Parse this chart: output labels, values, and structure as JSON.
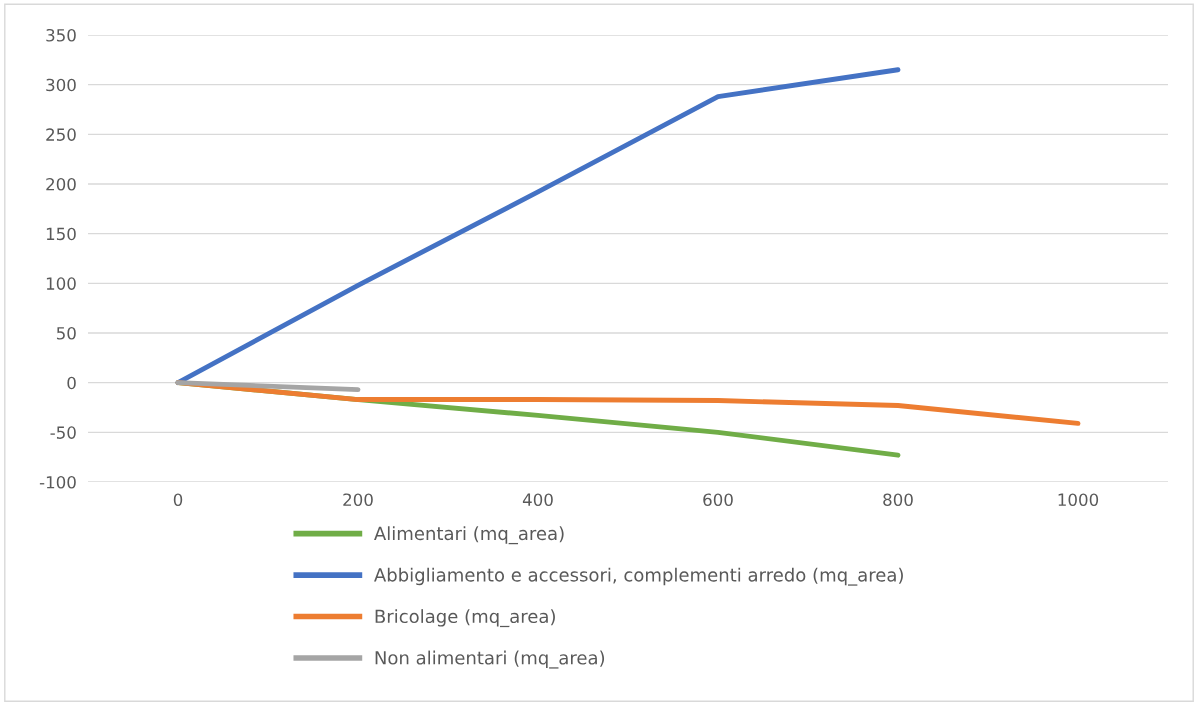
{
  "chart_data": {
    "type": "line",
    "categories": [
      "0",
      "200",
      "400",
      "600",
      "800",
      "1000"
    ],
    "series": [
      {
        "name": "Alimentari (mq_area)",
        "color": "#70ad47",
        "values": [
          0,
          -17,
          -33,
          -50,
          -73,
          null
        ]
      },
      {
        "name": "Abbigliamento e accessori, complementi arredo (mq_area)",
        "color": "#4472c4",
        "values": [
          0,
          98,
          192,
          288,
          315,
          null
        ]
      },
      {
        "name": "Bricolage (mq_area)",
        "color": "#ed7d31",
        "values": [
          0,
          -17,
          -17,
          -18,
          -23,
          -41
        ]
      },
      {
        "name": "Non alimentari (mq_area)",
        "color": "#a5a5a5",
        "values": [
          0,
          -7,
          null,
          null,
          null,
          null
        ]
      }
    ],
    "ylim": [
      -100,
      350
    ],
    "yticks": [
      -100,
      -50,
      0,
      50,
      100,
      150,
      200,
      250,
      300,
      350
    ],
    "grid": "y",
    "legend": "bottom",
    "marker": "none",
    "line_style": "solid"
  }
}
